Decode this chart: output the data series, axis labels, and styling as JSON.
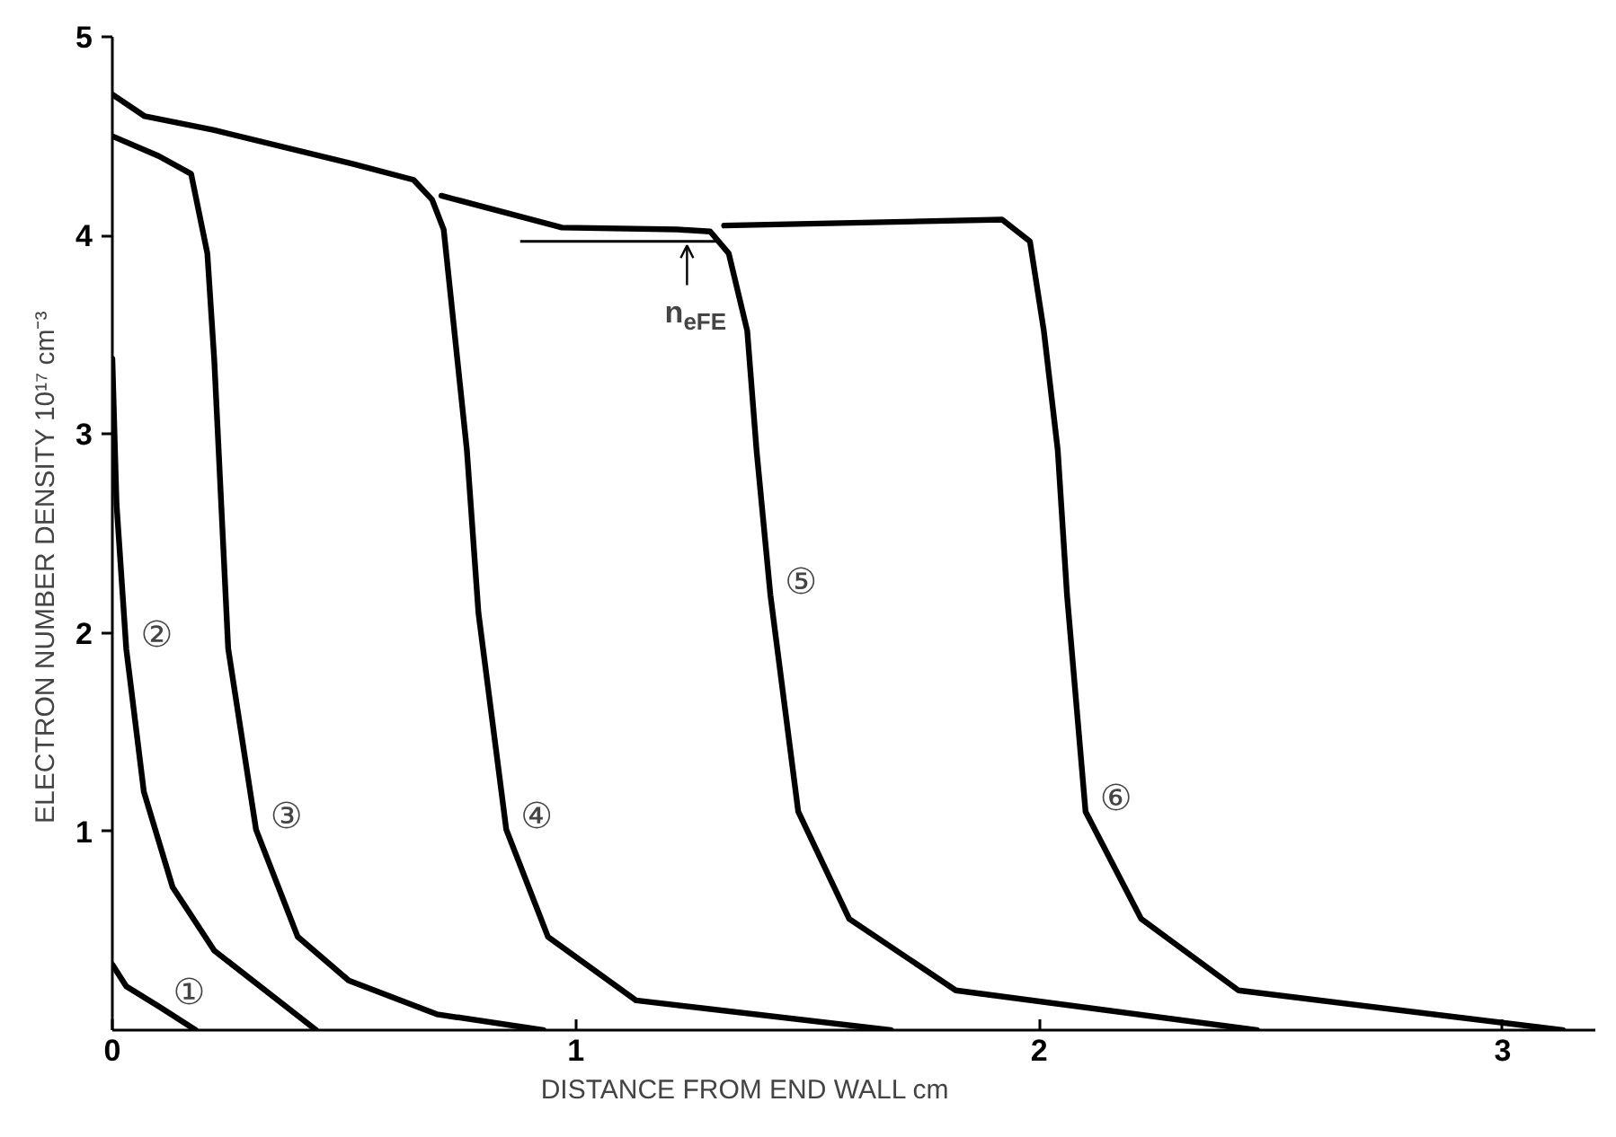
{
  "chart_data": {
    "type": "line",
    "xlabel": "DISTANCE FROM END WALL                              cm",
    "ylabel": "ELECTRON NUMBER DENSITY          10¹⁷ cm⁻³",
    "xlim": [
      0,
      3.2
    ],
    "ylim": [
      0,
      5
    ],
    "xticks": [
      0,
      1,
      2,
      3
    ],
    "yticks": [
      1,
      2,
      3,
      4,
      5
    ],
    "grid": false,
    "marker": "none",
    "line_style": "solid",
    "series": [
      {
        "name": "①",
        "color": "#000000",
        "x": [
          0,
          0.03,
          0.1,
          0.18
        ],
        "values": [
          0.33,
          0.22,
          0.12,
          0
        ]
      },
      {
        "name": "②",
        "color": "#000000",
        "x": [
          0,
          0.009,
          0.03,
          0.068,
          0.13,
          0.22,
          0.44
        ],
        "values": [
          3.38,
          2.65,
          1.92,
          1.2,
          0.72,
          0.4,
          0
        ]
      },
      {
        "name": "③",
        "color": "#000000",
        "x": [
          0,
          0.1,
          0.17,
          0.205,
          0.22,
          0.25,
          0.31,
          0.4,
          0.51,
          0.7,
          0.93
        ],
        "values": [
          4.5,
          4.4,
          4.31,
          3.91,
          3.37,
          1.92,
          1.01,
          0.47,
          0.25,
          0.08,
          0
        ]
      },
      {
        "name": "④",
        "color": "#000000",
        "x": [
          0,
          0.07,
          0.22,
          0.52,
          0.65,
          0.69,
          0.715,
          0.765,
          0.79,
          0.85,
          0.94,
          1.13,
          1.68
        ],
        "values": [
          4.71,
          4.6,
          4.53,
          4.36,
          4.28,
          4.18,
          4.03,
          2.92,
          2.1,
          1.01,
          0.47,
          0.15,
          0
        ]
      },
      {
        "name": "⑤",
        "color": "#000000",
        "x": [
          0.71,
          0.97,
          1.22,
          1.29,
          1.33,
          1.37,
          1.39,
          1.42,
          1.48,
          1.59,
          1.82,
          2.47
        ],
        "values": [
          4.2,
          4.04,
          4.03,
          4.02,
          3.91,
          3.52,
          2.92,
          2.19,
          1.1,
          0.56,
          0.2,
          0
        ]
      },
      {
        "name": "⑥",
        "color": "#000000",
        "x": [
          1.32,
          1.92,
          1.98,
          2.01,
          2.04,
          2.06,
          2.1,
          2.22,
          2.43,
          3.13
        ],
        "values": [
          4.05,
          4.08,
          3.97,
          3.52,
          2.92,
          2.19,
          1.1,
          0.56,
          0.2,
          0
        ]
      }
    ],
    "ref_lines": [
      {
        "axis": "y",
        "value": 3.97,
        "label": "n$_{eFE}$"
      }
    ]
  }
}
